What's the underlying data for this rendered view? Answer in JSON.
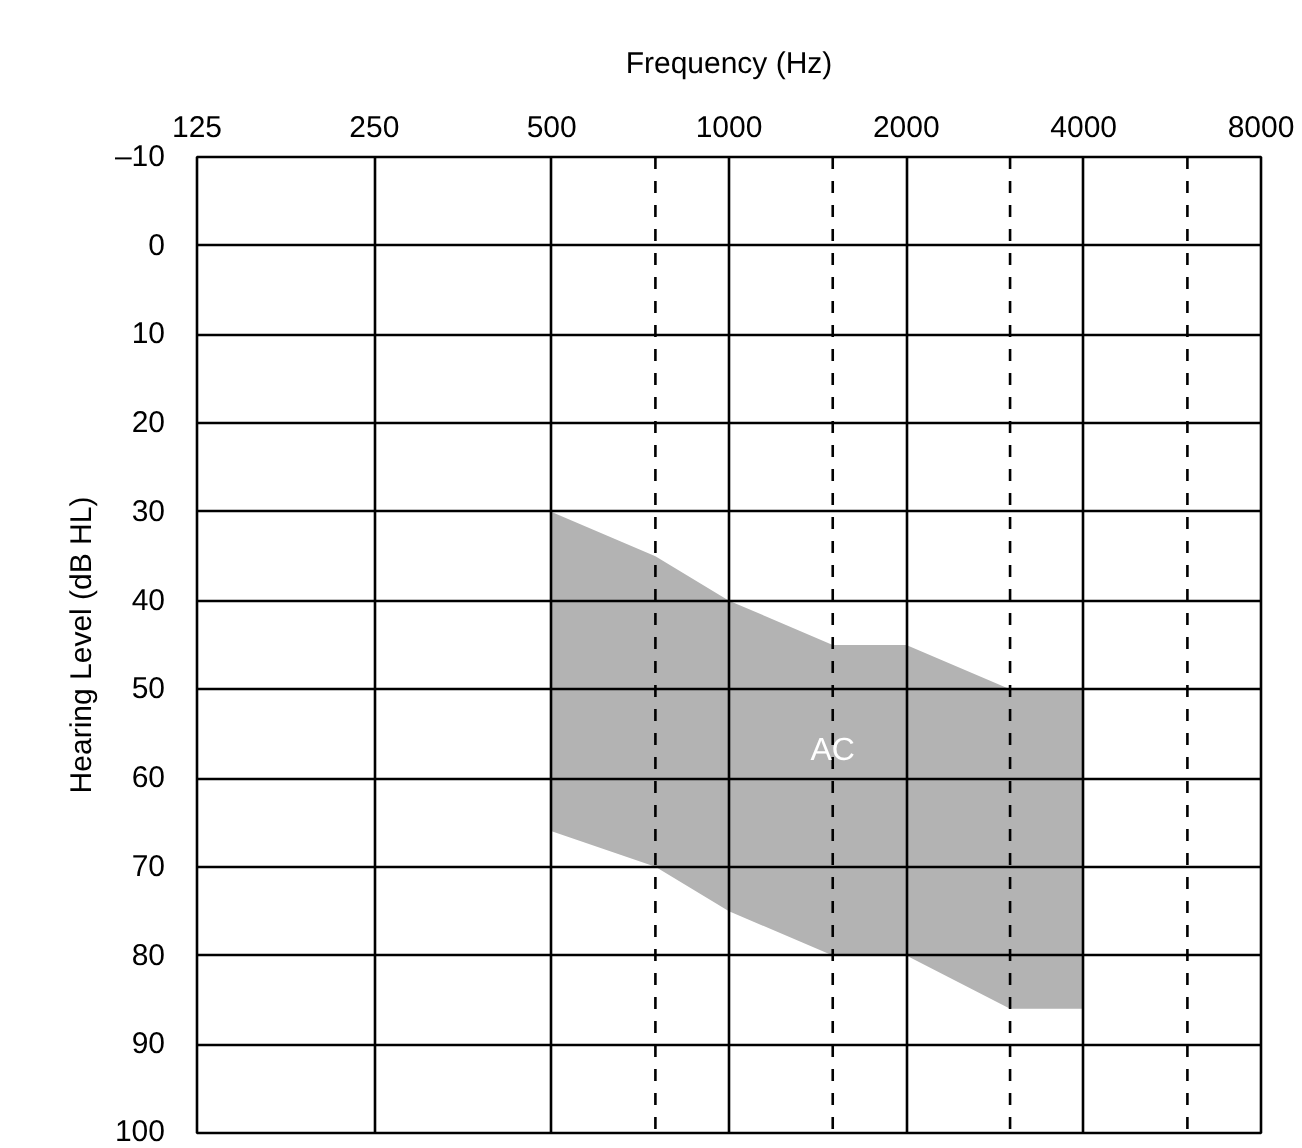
{
  "chart_data": {
    "type": "area",
    "xlabel": "Frequency (Hz)",
    "ylabel": "Hearing Level (dB HL)",
    "log": "x",
    "xlim": [
      125,
      8000
    ],
    "xticks": [
      125,
      250,
      500,
      1000,
      2000,
      4000,
      8000
    ],
    "ylim": [
      100,
      -10
    ],
    "yticks": [
      {
        "value": -10,
        "label": "–10"
      },
      0,
      10,
      20,
      30,
      40,
      50,
      60,
      70,
      80,
      90,
      100
    ],
    "x": [
      500,
      750,
      1000,
      1500,
      2000,
      3000,
      4000
    ],
    "series": [
      {
        "color": "#b3b3b3",
        "values": [
          null,
          null,
          null,
          null,
          null,
          null,
          null
        ],
        "lower": [
          66,
          70,
          75,
          80,
          80,
          86,
          86
        ],
        "upper": [
          30,
          35,
          40,
          45,
          45,
          50,
          50
        ]
      }
    ],
    "ref_lines": [
      {
        "axis": "x",
        "value": 750,
        "color": "#000000",
        "line_style": "dashed"
      },
      {
        "axis": "x",
        "value": 1500,
        "color": "#000000",
        "line_style": "dashed"
      },
      {
        "axis": "x",
        "value": 3000,
        "color": "#000000",
        "line_style": "dashed"
      },
      {
        "axis": "x",
        "value": 6000,
        "color": "#000000",
        "line_style": "dashed"
      }
    ],
    "annotations": [
      {
        "text": "AC",
        "x": 1500,
        "y": 57
      }
    ],
    "grid": true
  }
}
